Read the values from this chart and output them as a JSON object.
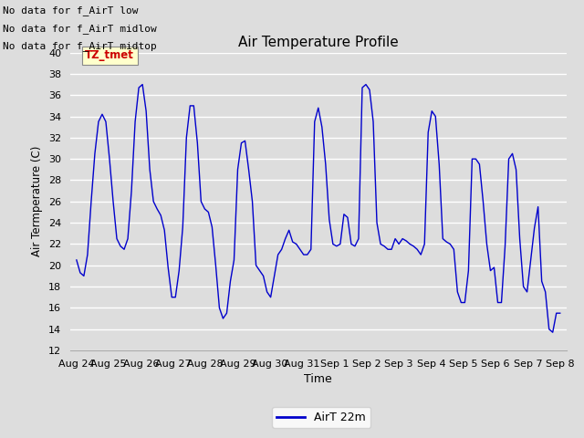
{
  "title": "Air Temperature Profile",
  "xlabel": "Time",
  "ylabel": "Air Termperature (C)",
  "ylim": [
    12,
    40
  ],
  "yticks": [
    12,
    14,
    16,
    18,
    20,
    22,
    24,
    26,
    28,
    30,
    32,
    34,
    36,
    38,
    40
  ],
  "line_color": "#0000cc",
  "bg_color": "#dddddd",
  "plot_bg_color": "#dddddd",
  "grid_color": "#ffffff",
  "legend_label": "AirT 22m",
  "annotation_lines": [
    "No data for f_AirT low",
    "No data for f_AirT midlow",
    "No data for f_AirT midtop"
  ],
  "tz_label": "TZ_tmet",
  "x_labels": [
    "Aug 24",
    "Aug 25",
    "Aug 26",
    "Aug 27",
    "Aug 28",
    "Aug 29",
    "Aug 30",
    "Aug 31",
    "Sep 1",
    "Sep 2",
    "Sep 3",
    "Sep 4",
    "Sep 5",
    "Sep 6",
    "Sep 7",
    "Sep 8"
  ],
  "temperatures": [
    20.5,
    19.3,
    19.0,
    21.0,
    26.0,
    30.5,
    33.5,
    34.2,
    33.5,
    30.0,
    26.0,
    22.5,
    21.8,
    21.5,
    22.5,
    27.0,
    33.5,
    36.7,
    37.0,
    34.5,
    29.0,
    26.0,
    25.3,
    24.7,
    23.3,
    19.8,
    17.0,
    17.0,
    19.5,
    23.6,
    32.0,
    35.0,
    35.0,
    31.5,
    26.0,
    25.3,
    25.0,
    23.6,
    20.0,
    16.0,
    15.0,
    15.5,
    18.5,
    20.5,
    29.0,
    31.5,
    31.7,
    29.0,
    26.0,
    20.0,
    19.5,
    19.0,
    17.5,
    17.0,
    19.0,
    21.0,
    21.5,
    22.5,
    23.3,
    22.2,
    22.0,
    21.5,
    21.0,
    21.0,
    21.5,
    33.5,
    34.8,
    33.0,
    29.5,
    24.3,
    22.0,
    21.8,
    22.0,
    24.8,
    24.5,
    22.0,
    21.8,
    22.5,
    36.7,
    37.0,
    36.5,
    33.5,
    24.0,
    22.0,
    21.8,
    21.5,
    21.5,
    22.5,
    22.0,
    22.5,
    22.3,
    22.0,
    21.8,
    21.5,
    21.0,
    22.0,
    32.5,
    34.5,
    34.0,
    29.5,
    22.5,
    22.2,
    22.0,
    21.5,
    17.5,
    16.5,
    16.5,
    19.5,
    30.0,
    30.0,
    29.5,
    26.0,
    22.0,
    19.5,
    19.8,
    16.5,
    16.5,
    21.8,
    30.0,
    30.5,
    29.0,
    22.5,
    18.0,
    17.5,
    20.5,
    23.5,
    25.5,
    18.5,
    17.5,
    14.0,
    13.7,
    15.5,
    15.5
  ]
}
